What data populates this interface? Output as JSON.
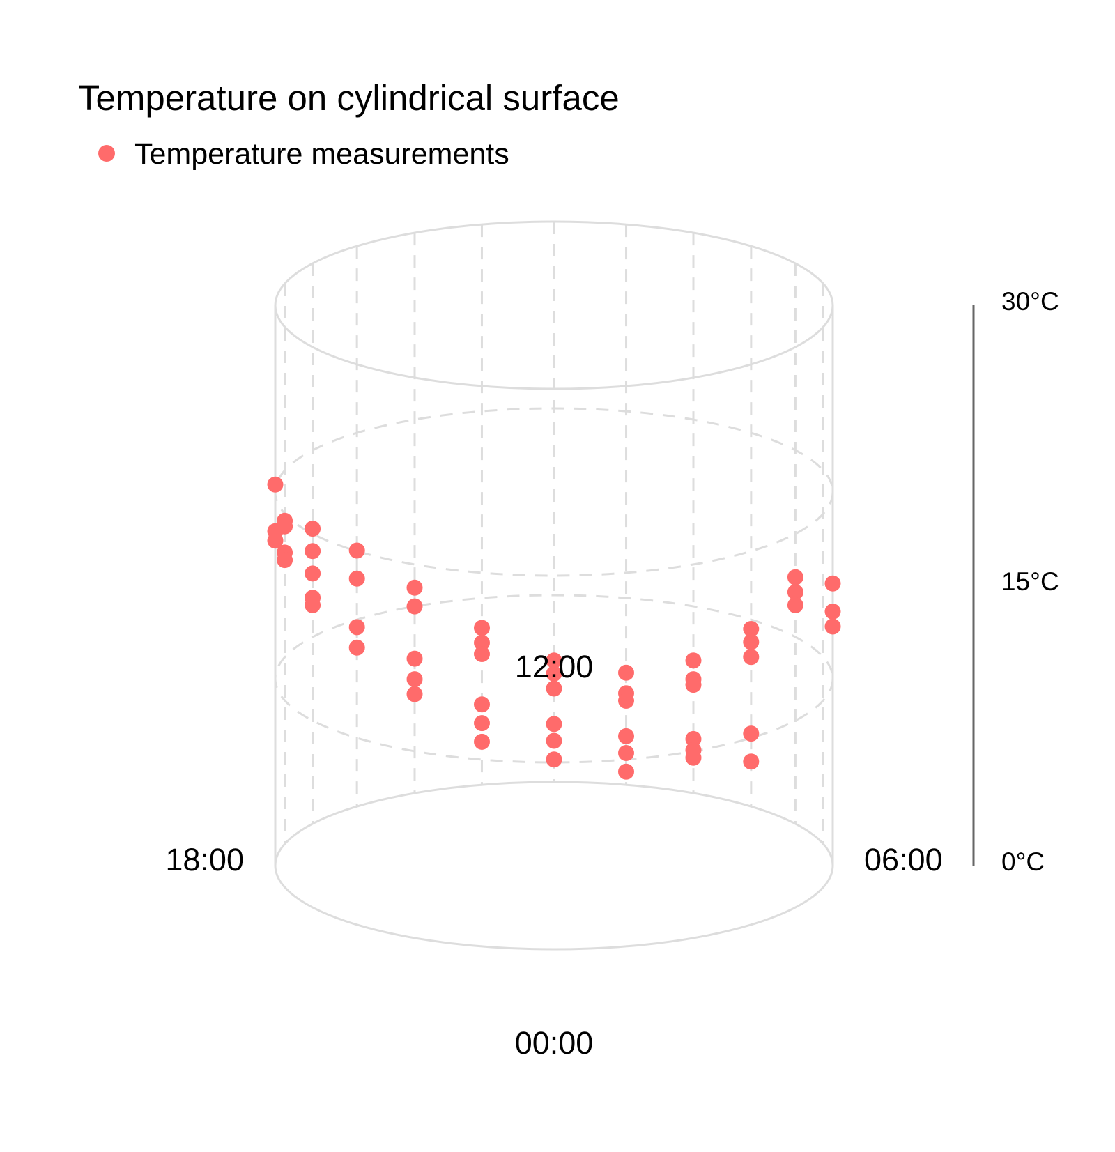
{
  "chart_data": {
    "type": "scatter",
    "title": "Temperature on cylindrical surface",
    "legend": {
      "placement": "top-left",
      "entries": [
        "Temperature measurements"
      ]
    },
    "series": [
      {
        "name": "Temperature measurements",
        "color": "#ff6b6b",
        "points": [
          {
            "hour": 18,
            "temp": 20.4
          },
          {
            "hour": 18,
            "temp": 17.9
          },
          {
            "hour": 18,
            "temp": 17.4
          },
          {
            "hour": 17,
            "temp": 17.3
          },
          {
            "hour": 17,
            "temp": 17.0
          },
          {
            "hour": 17,
            "temp": 15.6
          },
          {
            "hour": 17,
            "temp": 15.2
          },
          {
            "hour": 16,
            "temp": 15.8
          },
          {
            "hour": 16,
            "temp": 14.6
          },
          {
            "hour": 16,
            "temp": 13.4
          },
          {
            "hour": 16,
            "temp": 12.1
          },
          {
            "hour": 16,
            "temp": 11.7
          },
          {
            "hour": 15,
            "temp": 13.7
          },
          {
            "hour": 15,
            "temp": 12.2
          },
          {
            "hour": 15,
            "temp": 9.6
          },
          {
            "hour": 15,
            "temp": 8.5
          },
          {
            "hour": 14,
            "temp": 11.0
          },
          {
            "hour": 14,
            "temp": 10.0
          },
          {
            "hour": 14,
            "temp": 7.2
          },
          {
            "hour": 14,
            "temp": 6.1
          },
          {
            "hour": 14,
            "temp": 5.3
          },
          {
            "hour": 13,
            "temp": 8.4
          },
          {
            "hour": 13,
            "temp": 7.6
          },
          {
            "hour": 13,
            "temp": 7.0
          },
          {
            "hour": 13,
            "temp": 4.3
          },
          {
            "hour": 13,
            "temp": 3.3
          },
          {
            "hour": 13,
            "temp": 2.3
          },
          {
            "hour": 12,
            "temp": 6.5
          },
          {
            "hour": 12,
            "temp": 5.8
          },
          {
            "hour": 12,
            "temp": 5.0
          },
          {
            "hour": 12,
            "temp": 3.1
          },
          {
            "hour": 12,
            "temp": 2.2
          },
          {
            "hour": 12,
            "temp": 1.2
          },
          {
            "hour": 11,
            "temp": 6.0
          },
          {
            "hour": 11,
            "temp": 4.9
          },
          {
            "hour": 11,
            "temp": 4.5
          },
          {
            "hour": 11,
            "temp": 2.6
          },
          {
            "hour": 11,
            "temp": 1.7
          },
          {
            "hour": 11,
            "temp": 0.7
          },
          {
            "hour": 10,
            "temp": 7.1
          },
          {
            "hour": 10,
            "temp": 6.1
          },
          {
            "hour": 10,
            "temp": 5.8
          },
          {
            "hour": 10,
            "temp": 2.9
          },
          {
            "hour": 10,
            "temp": 2.3
          },
          {
            "hour": 10,
            "temp": 1.9
          },
          {
            "hour": 9,
            "temp": 9.5
          },
          {
            "hour": 9,
            "temp": 8.8
          },
          {
            "hour": 9,
            "temp": 8.0
          },
          {
            "hour": 9,
            "temp": 3.9
          },
          {
            "hour": 9,
            "temp": 2.4
          },
          {
            "hour": 8,
            "temp": 13.2
          },
          {
            "hour": 8,
            "temp": 12.4
          },
          {
            "hour": 8,
            "temp": 11.7
          },
          {
            "hour": 6,
            "temp": 15.1
          },
          {
            "hour": 6,
            "temp": 13.6
          },
          {
            "hour": 6,
            "temp": 12.8
          }
        ]
      }
    ],
    "angular_axis": {
      "unit": "hour",
      "range": [
        0,
        24
      ],
      "tick_labels": [
        {
          "hour": 0,
          "label": "00:00"
        },
        {
          "hour": 6,
          "label": "06:00"
        },
        {
          "hour": 12,
          "label": "12:00"
        },
        {
          "hour": 18,
          "label": "18:00"
        }
      ]
    },
    "vertical_axis": {
      "unit": "°C",
      "range": [
        0,
        30
      ],
      "tick_labels": [
        {
          "value": 0,
          "label": "0°C"
        },
        {
          "value": 15,
          "label": "15°C"
        },
        {
          "value": 30,
          "label": "30°C"
        }
      ]
    },
    "grid": true,
    "colors": {
      "points": "#ff6b6b",
      "cylinder": "#dddddd",
      "grid": "#dddddd",
      "axis": "#666666",
      "text": "#000000"
    }
  }
}
